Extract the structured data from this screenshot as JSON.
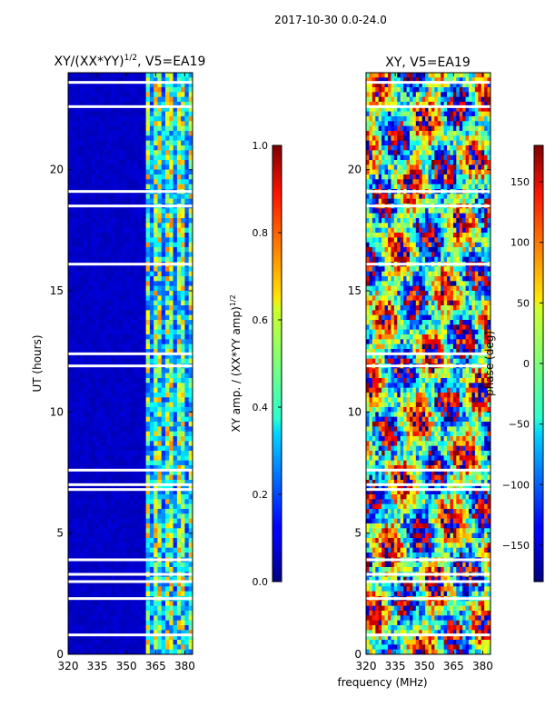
{
  "figure_title": "2017-10-30 0.0-24.0",
  "chart_data": [
    {
      "type": "heatmap",
      "title_main": "XY/(XX*YY)",
      "title_exp": "1/2",
      "title_suffix": ", V5=EA19",
      "xlabel": "",
      "ylabel": "UT (hours)",
      "xlim": [
        320,
        384
      ],
      "ylim": [
        0,
        24
      ],
      "xticks": [
        320,
        335,
        350,
        365,
        380
      ],
      "yticks": [
        0,
        5,
        10,
        15,
        20
      ],
      "colorbar": {
        "label_main": "XY amp. / (XX*YY amp)",
        "label_exp": "1/2",
        "range": [
          0.0,
          1.0
        ],
        "ticks": [
          "0.0",
          "0.2",
          "0.4",
          "0.6",
          "0.8",
          "1.0"
        ],
        "colormap": "jet"
      },
      "description_values": {
        "background_level": 0.05,
        "bright_band_mhz": [
          361,
          383
        ],
        "bright_band_level": 0.45,
        "flagged_gaps_hours": [
          0.8,
          2.3,
          3.0,
          3.3,
          3.9,
          6.8,
          7.0,
          7.6,
          11.9,
          12.4,
          16.1,
          18.5,
          19.1,
          22.6,
          23.6
        ]
      }
    },
    {
      "type": "heatmap",
      "title_main": "XY, V5=EA19",
      "xlabel": "frequency (MHz)",
      "ylabel": "",
      "xlim": [
        320,
        384
      ],
      "ylim": [
        0,
        24
      ],
      "xticks": [
        320,
        335,
        350,
        365,
        380
      ],
      "yticks": [
        0,
        5,
        10,
        15,
        20
      ],
      "colorbar": {
        "label_main": "phase (deg)",
        "range": [
          -180,
          180
        ],
        "ticks": [
          "−150",
          "−100",
          "−50",
          "0",
          "50",
          "100",
          "150"
        ],
        "tick_values": [
          -150,
          -100,
          -50,
          0,
          50,
          100,
          150
        ],
        "colormap": "jet"
      },
      "description_values": {
        "phase_range_deg": [
          -180,
          180
        ],
        "flagged_gaps_hours": [
          0.8,
          2.3,
          3.0,
          3.3,
          3.9,
          6.8,
          7.0,
          7.6,
          11.9,
          12.4,
          16.1,
          18.5,
          19.1,
          22.6,
          23.6
        ]
      }
    }
  ]
}
